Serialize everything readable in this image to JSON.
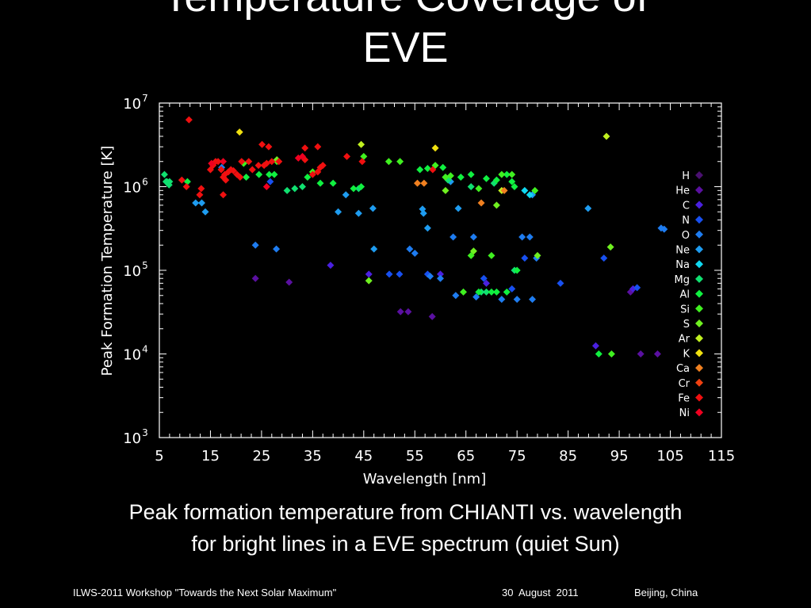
{
  "slide": {
    "title_line1": "Temperature Coverage of",
    "title_line2": "EVE",
    "caption_line1": "Peak formation temperature from CHIANTI vs. wavelength",
    "caption_line2": "for bright lines in a EVE spectrum (quiet Sun)"
  },
  "footer": {
    "workshop": "ILWS-2011 Workshop \"Towards the Next Solar Maximum\"",
    "date": "30  August  2011",
    "location": "Beijing, China"
  },
  "chart_data": {
    "type": "scatter",
    "title": "",
    "xlabel": "Wavelength [nm]",
    "ylabel": "Peak Formation Temperature [K]",
    "xlim": [
      5,
      115
    ],
    "ylim": [
      1000,
      10000000
    ],
    "yscale": "log",
    "xticks": [
      "5",
      "15",
      "25",
      "35",
      "45",
      "55",
      "65",
      "75",
      "85",
      "95",
      "105",
      "115"
    ],
    "xtick_values": [
      5,
      15,
      25,
      35,
      45,
      55,
      65,
      75,
      85,
      95,
      105,
      115
    ],
    "yticks": [
      {
        "base": "10",
        "exp": "3",
        "value": 1000
      },
      {
        "base": "10",
        "exp": "4",
        "value": 10000
      },
      {
        "base": "10",
        "exp": "5",
        "value": 100000
      },
      {
        "base": "10",
        "exp": "6",
        "value": 1000000
      },
      {
        "base": "10",
        "exp": "7",
        "value": 10000000
      }
    ],
    "legend_position": "right",
    "series": [
      {
        "name": "H",
        "color": "#4a1070",
        "points": []
      },
      {
        "name": "He",
        "color": "#5a10a0",
        "points": [
          [
            23.8,
            80000
          ],
          [
            30.4,
            72000
          ],
          [
            52.2,
            32000
          ],
          [
            53.7,
            32000
          ],
          [
            58.4,
            28000
          ],
          [
            97.2,
            55000
          ],
          [
            99.2,
            10000
          ],
          [
            102.5,
            10000
          ]
        ]
      },
      {
        "name": "C",
        "color": "#4a20e0",
        "points": [
          [
            38.5,
            115000
          ],
          [
            46.0,
            90000
          ],
          [
            60.0,
            90000
          ],
          [
            69.0,
            70000
          ],
          [
            90.4,
            12500
          ],
          [
            97.7,
            60000
          ]
        ]
      },
      {
        "name": "N",
        "color": "#1850f0",
        "points": [
          [
            26.7,
            1150000
          ],
          [
            50.0,
            90000
          ],
          [
            52.0,
            90000
          ],
          [
            57.5,
            90000
          ],
          [
            68.5,
            80000
          ],
          [
            74.0,
            60000
          ],
          [
            76.5,
            140000
          ],
          [
            83.5,
            70000
          ],
          [
            92.0,
            140000
          ],
          [
            98.5,
            62000
          ]
        ]
      },
      {
        "name": "O",
        "color": "#1e7cf0",
        "points": [
          [
            17.2,
            1700000
          ],
          [
            23.8,
            200000
          ],
          [
            27.9,
            180000
          ],
          [
            55.0,
            160000
          ],
          [
            60.0,
            80000
          ],
          [
            63.0,
            50000
          ],
          [
            62.5,
            250000
          ],
          [
            66.5,
            250000
          ],
          [
            67.0,
            48000
          ],
          [
            72.0,
            45000
          ],
          [
            76.0,
            250000
          ],
          [
            77.5,
            250000
          ],
          [
            78.0,
            45000
          ],
          [
            75.0,
            45000
          ],
          [
            78.8,
            140000
          ],
          [
            103.2,
            320000
          ],
          [
            103.8,
            310000
          ],
          [
            54.0,
            180000
          ],
          [
            58.0,
            85000
          ]
        ]
      },
      {
        "name": "Ne",
        "color": "#1e9cf0",
        "points": [
          [
            12.1,
            640000
          ],
          [
            13.3,
            640000
          ],
          [
            14.0,
            500000
          ],
          [
            40.0,
            500000
          ],
          [
            41.5,
            800000
          ],
          [
            44.0,
            480000
          ],
          [
            46.8,
            550000
          ],
          [
            47.0,
            180000
          ],
          [
            56.5,
            540000
          ],
          [
            56.7,
            480000
          ],
          [
            57.5,
            320000
          ],
          [
            62.0,
            1150000
          ],
          [
            63.5,
            550000
          ],
          [
            78.0,
            800000
          ],
          [
            88.9,
            550000
          ]
        ]
      },
      {
        "name": "Na",
        "color": "#10d8f0",
        "points": [
          [
            76.5,
            900000
          ],
          [
            77.5,
            800000
          ]
        ]
      },
      {
        "name": "Mg",
        "color": "#10e070",
        "points": [
          [
            6.0,
            1400000
          ],
          [
            6.3,
            1150000
          ],
          [
            6.9,
            1050000
          ],
          [
            7.0,
            1150000
          ],
          [
            6.5,
            1150000
          ],
          [
            30.0,
            900000
          ],
          [
            31.5,
            950000
          ],
          [
            33.0,
            1000000
          ],
          [
            44.0,
            950000
          ],
          [
            61.0,
            1300000
          ],
          [
            61.5,
            1200000
          ],
          [
            66.0,
            1000000
          ],
          [
            68.0,
            55000
          ],
          [
            69.0,
            55000
          ],
          [
            70.5,
            1100000
          ],
          [
            74.5,
            100000
          ]
        ]
      },
      {
        "name": "Al",
        "color": "#10f040",
        "points": [
          [
            10.5,
            1150000
          ],
          [
            22.0,
            1300000
          ],
          [
            24.5,
            1400000
          ],
          [
            26.5,
            1400000
          ],
          [
            27.5,
            1400000
          ],
          [
            34.0,
            1300000
          ],
          [
            36.5,
            1100000
          ],
          [
            39.0,
            1100000
          ],
          [
            43.0,
            950000
          ],
          [
            44.5,
            1000000
          ],
          [
            56.0,
            1600000
          ],
          [
            57.5,
            1650000
          ],
          [
            60.5,
            1700000
          ],
          [
            64.0,
            1300000
          ],
          [
            66.0,
            1400000
          ],
          [
            69.0,
            1250000
          ],
          [
            71.0,
            1200000
          ],
          [
            73.0,
            1400000
          ],
          [
            74.0,
            1150000
          ],
          [
            74.5,
            1000000
          ],
          [
            75.0,
            100000
          ],
          [
            67.5,
            55000
          ],
          [
            70.0,
            55000
          ],
          [
            71.0,
            55000
          ],
          [
            73.0,
            55000
          ],
          [
            91.0,
            10000
          ]
        ]
      },
      {
        "name": "Si",
        "color": "#40f020",
        "points": [
          [
            21.5,
            1900000
          ],
          [
            28.0,
            2000000
          ],
          [
            35.0,
            1500000
          ],
          [
            45.0,
            2300000
          ],
          [
            49.9,
            2000000
          ],
          [
            52.1,
            2000000
          ],
          [
            59.0,
            1800000
          ],
          [
            61.0,
            1300000
          ],
          [
            62.0,
            1350000
          ],
          [
            64.5,
            55000
          ],
          [
            66.0,
            150000
          ],
          [
            67.5,
            950000
          ],
          [
            70.0,
            150000
          ],
          [
            72.0,
            1400000
          ],
          [
            74.0,
            1400000
          ],
          [
            78.5,
            900000
          ],
          [
            93.5,
            10000
          ]
        ]
      },
      {
        "name": "S",
        "color": "#70f020",
        "points": [
          [
            28.0,
            2100000
          ],
          [
            46.0,
            75000
          ],
          [
            61.0,
            900000
          ],
          [
            66.5,
            170000
          ],
          [
            71.0,
            600000
          ],
          [
            79.0,
            150000
          ],
          [
            93.3,
            190000
          ]
        ]
      },
      {
        "name": "Ar",
        "color": "#c0f020",
        "points": [
          [
            44.5,
            3200000
          ],
          [
            92.5,
            4000000
          ],
          [
            72.0,
            900000
          ]
        ]
      },
      {
        "name": "K",
        "color": "#f0e010",
        "points": [
          [
            20.7,
            4500000
          ],
          [
            59.0,
            2900000
          ]
        ]
      },
      {
        "name": "Ca",
        "color": "#f08020",
        "points": [
          [
            55.5,
            1100000
          ],
          [
            56.8,
            1100000
          ],
          [
            68.0,
            640000
          ],
          [
            72.5,
            900000
          ]
        ]
      },
      {
        "name": "Cr",
        "color": "#f04010",
        "points": []
      },
      {
        "name": "Fe",
        "color": "#f01010",
        "points": [
          [
            9.4,
            1200000
          ],
          [
            10.8,
            6300000
          ],
          [
            10.3,
            1000000
          ],
          [
            12.9,
            800000
          ],
          [
            13.2,
            950000
          ],
          [
            15.0,
            1600000
          ],
          [
            15.5,
            1800000
          ],
          [
            16.0,
            2000000
          ],
          [
            16.5,
            2000000
          ],
          [
            17.1,
            1600000
          ],
          [
            17.5,
            1300000
          ],
          [
            17.8,
            1400000
          ],
          [
            18.0,
            1200000
          ],
          [
            18.5,
            1500000
          ],
          [
            19.0,
            1600000
          ],
          [
            19.5,
            1550000
          ],
          [
            20.2,
            1400000
          ],
          [
            20.8,
            1300000
          ],
          [
            21.1,
            2000000
          ],
          [
            22.5,
            2000000
          ],
          [
            23.2,
            1600000
          ],
          [
            24.4,
            1800000
          ],
          [
            25.1,
            3200000
          ],
          [
            25.5,
            1800000
          ],
          [
            26.0,
            1900000
          ],
          [
            26.4,
            3000000
          ],
          [
            27.0,
            2000000
          ],
          [
            28.4,
            2000000
          ],
          [
            33.5,
            2900000
          ],
          [
            33.5,
            2100000
          ],
          [
            35.0,
            1400000
          ],
          [
            36.0,
            3000000
          ],
          [
            36.0,
            1500000
          ],
          [
            36.5,
            1700000
          ],
          [
            37.0,
            1800000
          ],
          [
            41.7,
            2300000
          ],
          [
            44.7,
            2000000
          ],
          [
            58.5,
            1600000
          ],
          [
            17.5,
            800000
          ]
        ]
      },
      {
        "name": "Ni",
        "color": "#f00020",
        "points": [
          [
            15.2,
            1900000
          ],
          [
            17.5,
            2000000
          ],
          [
            32.2,
            2200000
          ],
          [
            33.0,
            2300000
          ],
          [
            26.0,
            1000000
          ]
        ]
      }
    ]
  }
}
